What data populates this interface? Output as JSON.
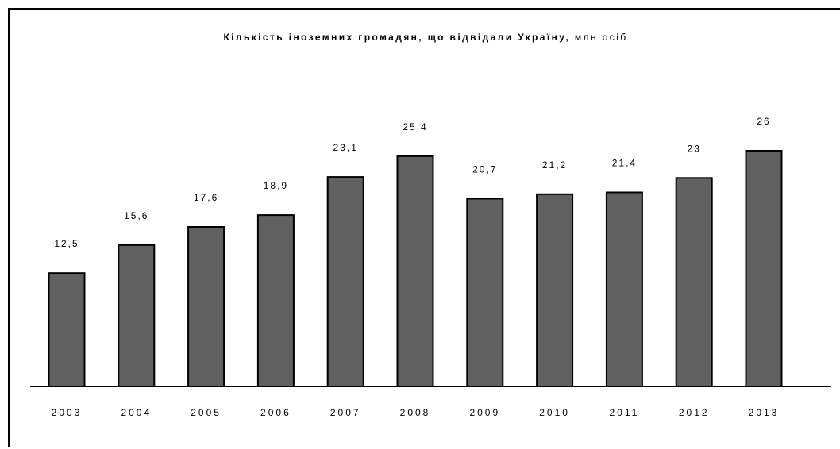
{
  "chart_data": {
    "type": "bar",
    "title": "Кількість іноземних громадян, що відвідали Україну,",
    "title_unit": "млн осіб",
    "categories": [
      "2003",
      "2004",
      "2005",
      "2006",
      "2007",
      "2008",
      "2009",
      "2010",
      "2011",
      "2012",
      "2013"
    ],
    "values": [
      12.5,
      15.6,
      17.6,
      18.9,
      23.1,
      25.4,
      20.7,
      21.2,
      21.4,
      23,
      26
    ],
    "value_labels": [
      "12,5",
      "15,6",
      "17,6",
      "18,9",
      "23,1",
      "25,4",
      "20,7",
      "21,2",
      "21,4",
      "23",
      "26"
    ],
    "xlabel": "",
    "ylabel": "",
    "ylim": [
      0,
      26
    ],
    "grid": false,
    "legend": "none",
    "bar_color": "#606060",
    "bar_edge_color": "#000000"
  }
}
